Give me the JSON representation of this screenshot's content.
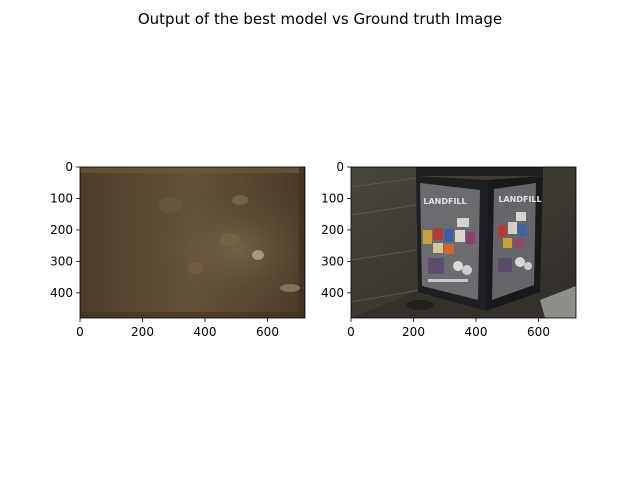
{
  "figure": {
    "title": "Output of the best model vs Ground truth Image"
  },
  "chart_data": [
    {
      "type": "image",
      "title": "",
      "xlabel": "",
      "ylabel": "",
      "xlim": [
        0,
        720
      ],
      "ylim": [
        480,
        0
      ],
      "x_ticks": [
        0,
        200,
        400,
        600
      ],
      "y_ticks": [
        0,
        100,
        200,
        300,
        400
      ],
      "content": "blurry brownish model output",
      "palette": {
        "base": "#5f4b30",
        "dark": "#4a3a24",
        "light": "#8a7455"
      }
    },
    {
      "type": "image",
      "title": "",
      "xlabel": "",
      "ylabel": "",
      "xlim": [
        0,
        720
      ],
      "ylim": [
        480,
        0
      ],
      "x_ticks": [
        0,
        200,
        400,
        600
      ],
      "y_ticks": [
        0,
        100,
        200,
        300,
        400
      ],
      "content": "dark photo of a trash bin kiosk with posters",
      "kiosk_text": [
        "LANDFILL",
        "LANDFILL"
      ],
      "palette": {
        "base": "#3d3a33",
        "dark": "#1d1c1e",
        "light": "#9a9a96"
      }
    }
  ]
}
